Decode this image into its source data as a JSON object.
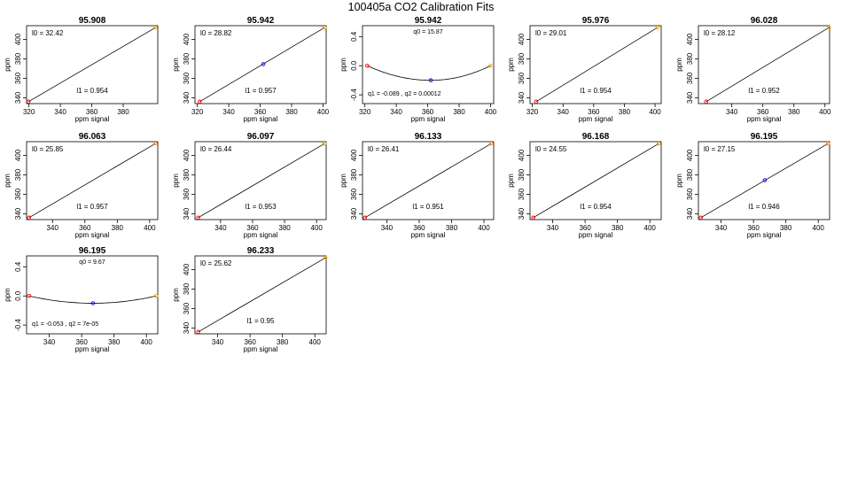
{
  "figure_title": "100405a   CO2 Calibration Fits",
  "chart_data": [
    {
      "type": "line",
      "title": "95.908",
      "xlabel": "ppm signal",
      "ylabel": "ppm",
      "kind": "linear",
      "xlim": [
        318.5,
        402
      ],
      "ylim": [
        334,
        414
      ],
      "xticks": [
        320,
        340,
        360,
        380
      ],
      "yticks": [
        340,
        360,
        380,
        400
      ],
      "points": [
        {
          "x": 319.7,
          "y": 336.0,
          "color": "#ff0000"
        },
        {
          "x": 400.5,
          "y": 412.0,
          "color": "#ffa500"
        }
      ],
      "fit": {
        "x": [
          319.7,
          400.5
        ],
        "y": [
          336.0,
          412.0
        ]
      },
      "annotations": [
        {
          "text": "l0 =  32.42",
          "pos": "top-left"
        },
        {
          "text": "l1 =  0.954",
          "pos": "bottom-center"
        }
      ]
    },
    {
      "type": "line",
      "title": "95.942",
      "xlabel": "ppm signal",
      "ylabel": "ppm",
      "kind": "linear",
      "xlim": [
        318.5,
        402
      ],
      "ylim": [
        334,
        414
      ],
      "xticks": [
        320,
        340,
        360,
        380,
        400
      ],
      "yticks": [
        340,
        360,
        380,
        400
      ],
      "points": [
        {
          "x": 321.5,
          "y": 336.0,
          "color": "#ff0000"
        },
        {
          "x": 362.0,
          "y": 374.5,
          "color": "#0000ff"
        },
        {
          "x": 401.0,
          "y": 412.0,
          "color": "#ffa500"
        }
      ],
      "fit": {
        "x": [
          321.5,
          401.0
        ],
        "y": [
          336.0,
          412.0
        ]
      },
      "annotations": [
        {
          "text": "l0 =  28.82",
          "pos": "top-left"
        },
        {
          "text": "l1 =  0.957",
          "pos": "bottom-center"
        }
      ]
    },
    {
      "type": "line",
      "title": "95.942",
      "xlabel": "ppm signal",
      "ylabel": "ppm",
      "kind": "quadratic",
      "xlim": [
        318.5,
        402
      ],
      "ylim": [
        -0.52,
        0.55
      ],
      "xticks": [
        320,
        340,
        360,
        380,
        400
      ],
      "yticks": [
        -0.4,
        0.0,
        0.4
      ],
      "ytick_labels": [
        "-0.4",
        "0.0",
        "0.4"
      ],
      "points": [
        {
          "x": 321.5,
          "y": 0.0,
          "color": "#ff0000"
        },
        {
          "x": 362.0,
          "y": -0.2,
          "color": "#0000ff"
        },
        {
          "x": 400.0,
          "y": 0.0,
          "color": "#ffa500"
        }
      ],
      "fit": {
        "x": [
          321.5,
          400.0
        ],
        "vertex": [
          362.0,
          -0.2
        ]
      },
      "annotations": [
        {
          "text": "q0 = 15.87",
          "pos": "top-center"
        },
        {
          "text": "q1 = -0.089 , q2 = 0.00012",
          "pos": "bottom-left"
        }
      ]
    },
    {
      "type": "line",
      "title": "95.976",
      "xlabel": "ppm signal",
      "ylabel": "ppm",
      "kind": "linear",
      "xlim": [
        318.5,
        404
      ],
      "ylim": [
        334,
        414
      ],
      "xticks": [
        320,
        340,
        360,
        380,
        400
      ],
      "yticks": [
        340,
        360,
        380,
        400
      ],
      "points": [
        {
          "x": 322.5,
          "y": 336.0,
          "color": "#ff0000"
        },
        {
          "x": 401.5,
          "y": 412.0,
          "color": "#ffa500"
        }
      ],
      "fit": {
        "x": [
          322.5,
          401.5
        ],
        "y": [
          336.0,
          412.0
        ]
      },
      "annotations": [
        {
          "text": "l0 =  29.01",
          "pos": "top-left"
        },
        {
          "text": "l1 =  0.954",
          "pos": "bottom-center"
        }
      ]
    },
    {
      "type": "line",
      "title": "96.028",
      "xlabel": "ppm signal",
      "ylabel": "ppm",
      "kind": "linear",
      "xlim": [
        318.5,
        403
      ],
      "ylim": [
        334,
        414
      ],
      "xticks": [
        340,
        360,
        380,
        400
      ],
      "yticks": [
        340,
        360,
        380,
        400
      ],
      "points": [
        {
          "x": 323.5,
          "y": 336.0,
          "color": "#ff0000"
        },
        {
          "x": 402.5,
          "y": 412.0,
          "color": "#ffa500"
        }
      ],
      "fit": {
        "x": [
          323.5,
          402.5
        ],
        "y": [
          336.0,
          412.0
        ]
      },
      "annotations": [
        {
          "text": "l0 =  28.12",
          "pos": "top-left"
        },
        {
          "text": "l1 =  0.952",
          "pos": "bottom-center"
        }
      ]
    },
    {
      "type": "line",
      "title": "96.063",
      "xlabel": "ppm signal",
      "ylabel": "ppm",
      "kind": "linear",
      "xlim": [
        324,
        405
      ],
      "ylim": [
        334,
        414
      ],
      "xticks": [
        340,
        360,
        380,
        400
      ],
      "yticks": [
        340,
        360,
        380,
        400
      ],
      "points": [
        {
          "x": 325.5,
          "y": 336.0,
          "color": "#ff0000"
        },
        {
          "x": 403.5,
          "y": 412.0,
          "color": "#ffa500"
        }
      ],
      "fit": {
        "x": [
          325.5,
          403.5
        ],
        "y": [
          336.0,
          412.0
        ]
      },
      "annotations": [
        {
          "text": "l0 =  25.85",
          "pos": "top-left"
        },
        {
          "text": "l1 =  0.957",
          "pos": "bottom-center"
        }
      ]
    },
    {
      "type": "line",
      "title": "96.097",
      "xlabel": "ppm signal",
      "ylabel": "ppm",
      "kind": "linear",
      "xlim": [
        324,
        406
      ],
      "ylim": [
        334,
        414
      ],
      "xticks": [
        340,
        360,
        380,
        400
      ],
      "yticks": [
        340,
        360,
        380,
        400
      ],
      "points": [
        {
          "x": 326.0,
          "y": 336.0,
          "color": "#ff0000"
        },
        {
          "x": 405.0,
          "y": 412.0,
          "color": "#ffa500"
        }
      ],
      "fit": {
        "x": [
          326.0,
          405.0
        ],
        "y": [
          336.0,
          412.0
        ]
      },
      "annotations": [
        {
          "text": "l0 =  26.44",
          "pos": "top-left"
        },
        {
          "text": "l1 =  0.953",
          "pos": "bottom-center"
        }
      ]
    },
    {
      "type": "line",
      "title": "96.133",
      "xlabel": "ppm signal",
      "ylabel": "ppm",
      "kind": "linear",
      "xlim": [
        325,
        406
      ],
      "ylim": [
        334,
        414
      ],
      "xticks": [
        340,
        360,
        380,
        400
      ],
      "yticks": [
        340,
        360,
        380,
        400
      ],
      "points": [
        {
          "x": 326.5,
          "y": 336.0,
          "color": "#ff0000"
        },
        {
          "x": 404.5,
          "y": 412.0,
          "color": "#ffa500"
        }
      ],
      "fit": {
        "x": [
          326.5,
          404.5
        ],
        "y": [
          336.0,
          412.0
        ]
      },
      "annotations": [
        {
          "text": "l0 =  26.41",
          "pos": "top-left"
        },
        {
          "text": "l1 =  0.951",
          "pos": "bottom-center"
        }
      ]
    },
    {
      "type": "line",
      "title": "96.168",
      "xlabel": "ppm signal",
      "ylabel": "ppm",
      "kind": "linear",
      "xlim": [
        326,
        407
      ],
      "ylim": [
        334,
        414
      ],
      "xticks": [
        340,
        360,
        380,
        400
      ],
      "yticks": [
        340,
        360,
        380,
        400
      ],
      "points": [
        {
          "x": 328.0,
          "y": 336.0,
          "color": "#ff0000"
        },
        {
          "x": 405.5,
          "y": 412.0,
          "color": "#ffa500"
        }
      ],
      "fit": {
        "x": [
          328.0,
          405.5
        ],
        "y": [
          336.0,
          412.0
        ]
      },
      "annotations": [
        {
          "text": "l0 =  24.55",
          "pos": "top-left"
        },
        {
          "text": "l1 =  0.954",
          "pos": "bottom-center"
        }
      ]
    },
    {
      "type": "line",
      "title": "96.195",
      "xlabel": "ppm signal",
      "ylabel": "ppm",
      "kind": "linear",
      "xlim": [
        326,
        407
      ],
      "ylim": [
        334,
        414
      ],
      "xticks": [
        340,
        360,
        380,
        400
      ],
      "yticks": [
        340,
        360,
        380,
        400
      ],
      "points": [
        {
          "x": 327.5,
          "y": 336.0,
          "color": "#ff0000"
        },
        {
          "x": 367.0,
          "y": 374.5,
          "color": "#0000ff"
        },
        {
          "x": 406.0,
          "y": 412.0,
          "color": "#ffa500"
        }
      ],
      "fit": {
        "x": [
          327.5,
          406.0
        ],
        "y": [
          336.0,
          412.0
        ]
      },
      "annotations": [
        {
          "text": "l0 =  27.15",
          "pos": "top-left"
        },
        {
          "text": "l1 =  0.946",
          "pos": "bottom-center"
        }
      ]
    },
    {
      "type": "line",
      "title": "96.195",
      "xlabel": "ppm signal",
      "ylabel": "ppm",
      "kind": "quadratic",
      "xlim": [
        326,
        407
      ],
      "ylim": [
        -0.52,
        0.55
      ],
      "xticks": [
        340,
        360,
        380,
        400
      ],
      "yticks": [
        -0.4,
        0.0,
        0.4
      ],
      "ytick_labels": [
        "-0.4",
        "0.0",
        "0.4"
      ],
      "points": [
        {
          "x": 327.5,
          "y": 0.0,
          "color": "#ff0000"
        },
        {
          "x": 367.0,
          "y": -0.1,
          "color": "#0000ff"
        },
        {
          "x": 406.0,
          "y": 0.0,
          "color": "#ffa500"
        }
      ],
      "fit": {
        "x": [
          327.5,
          406.0
        ],
        "vertex": [
          367.0,
          -0.1
        ]
      },
      "annotations": [
        {
          "text": "q0 = 9.67",
          "pos": "top-center"
        },
        {
          "text": "q1 = -0.053 , q2 = 7e-05",
          "pos": "bottom-left"
        }
      ]
    },
    {
      "type": "line",
      "title": "96.233",
      "xlabel": "ppm signal",
      "ylabel": "ppm",
      "kind": "linear",
      "xlim": [
        326,
        407
      ],
      "ylim": [
        334,
        414
      ],
      "xticks": [
        340,
        360,
        380,
        400
      ],
      "yticks": [
        340,
        360,
        380,
        400
      ],
      "points": [
        {
          "x": 328.0,
          "y": 336.0,
          "color": "#ff0000"
        },
        {
          "x": 406.5,
          "y": 412.0,
          "color": "#ffa500"
        }
      ],
      "fit": {
        "x": [
          328.0,
          406.5
        ],
        "y": [
          336.0,
          412.0
        ]
      },
      "annotations": [
        {
          "text": "l0 =  25.62",
          "pos": "top-left"
        },
        {
          "text": "l1 =  0.95",
          "pos": "bottom-center"
        }
      ]
    }
  ]
}
